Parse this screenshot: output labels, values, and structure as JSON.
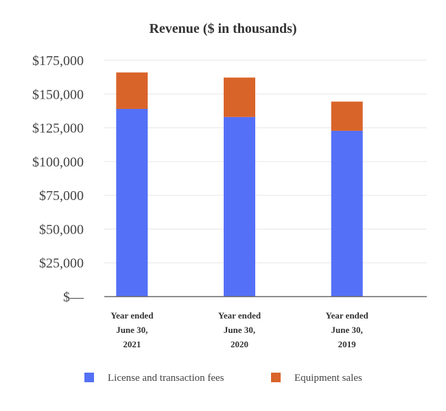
{
  "chart_data": {
    "type": "bar",
    "stacked": true,
    "title": "Revenue ($ in thousands)",
    "categories": [
      [
        "Year ended",
        "June 30,",
        "2021"
      ],
      [
        "Year ended",
        "June 30,",
        "2020"
      ],
      [
        "Year ended",
        "June 30,",
        "2019"
      ]
    ],
    "series": [
      {
        "name": "License and transaction fees",
        "color": "#5470f6",
        "values": [
          139000,
          133000,
          122800
        ]
      },
      {
        "name": "Equipment sales",
        "color": "#d9642a",
        "values": [
          27000,
          29200,
          21600
        ]
      }
    ],
    "yticks": [
      {
        "value": 0,
        "label": "$—"
      },
      {
        "value": 25000,
        "label": "$25,000"
      },
      {
        "value": 50000,
        "label": "$50,000"
      },
      {
        "value": 75000,
        "label": "$75,000"
      },
      {
        "value": 100000,
        "label": "$100,000"
      },
      {
        "value": 125000,
        "label": "$125,000"
      },
      {
        "value": 150000,
        "label": "$150,000"
      },
      {
        "value": 175000,
        "label": "$175,000"
      }
    ],
    "ylim": [
      0,
      175000
    ],
    "grid": true,
    "legend_position": "bottom"
  }
}
